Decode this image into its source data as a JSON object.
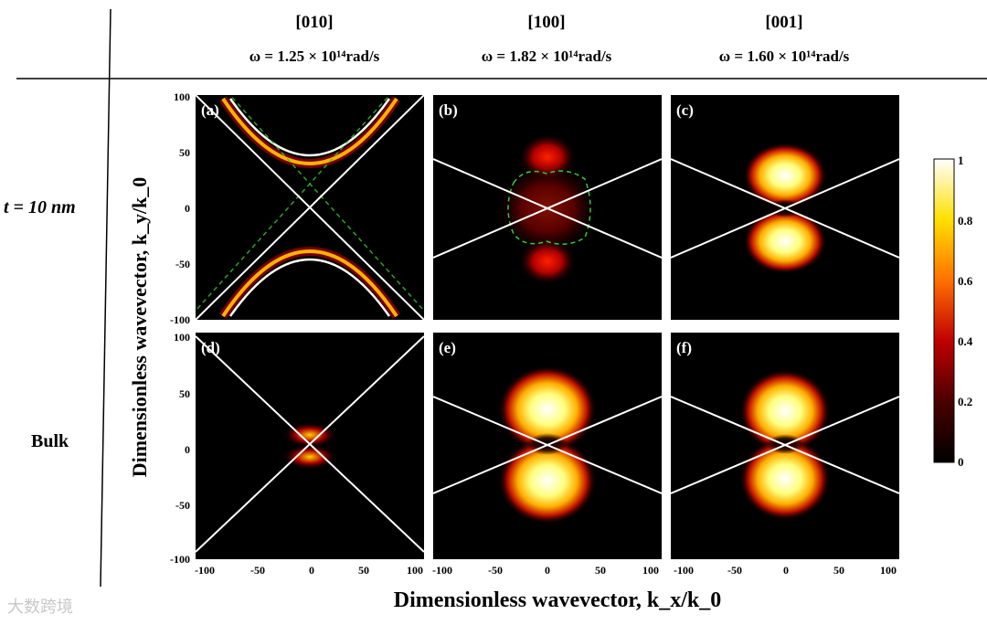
{
  "columns": [
    {
      "direction": "[010]",
      "frequency": "ω = 1.25 × 10¹⁴rad/s"
    },
    {
      "direction": "[100]",
      "frequency": "ω = 1.82 × 10¹⁴rad/s"
    },
    {
      "direction": "[001]",
      "frequency": "ω = 1.60 × 10¹⁴rad/s"
    }
  ],
  "rows": [
    {
      "label": "t = 10 nm"
    },
    {
      "label": "Bulk"
    }
  ],
  "watermark": "大数跨境",
  "chart_data": {
    "type": "heatmap",
    "panels": [
      {
        "label": "(a)",
        "row": "t = 10 nm",
        "column": "[010]",
        "pattern": "hyperbolic-branches",
        "vertex_ky": [
          -50,
          50
        ],
        "light_line_slope": 1.0
      },
      {
        "label": "(b)",
        "row": "t = 10 nm",
        "column": "[100]",
        "pattern": "elliptic-weak",
        "light_line_slope": 0.42,
        "contour": "green-dashed closed"
      },
      {
        "label": "(c)",
        "row": "t = 10 nm",
        "column": "[001]",
        "pattern": "two-lobes",
        "light_line_slope": 0.42
      },
      {
        "label": "(d)",
        "row": "Bulk",
        "column": "[010]",
        "pattern": "cone-near-origin",
        "light_line_slope": 1.0
      },
      {
        "label": "(e)",
        "row": "Bulk",
        "column": "[100]",
        "pattern": "two-lobes",
        "light_line_slope": 0.42
      },
      {
        "label": "(f)",
        "row": "Bulk",
        "column": "[001]",
        "pattern": "two-lobes",
        "light_line_slope": 0.42
      }
    ],
    "xlabel": "Dimensionless wavevector, k_x/k_0",
    "ylabel": "Dimensionless wavevector, k_y/k_0",
    "xlim": [
      -100,
      100
    ],
    "ylim": [
      -100,
      100
    ],
    "x_ticks": [
      "-100",
      "-50",
      "0",
      "50",
      "100"
    ],
    "y_ticks": [
      "100",
      "50",
      "0",
      "-50",
      "-100"
    ],
    "colorbar": {
      "min": 0,
      "max": 1,
      "ticks": [
        "1",
        "0.8",
        "0.6",
        "0.4",
        "0.2",
        "0"
      ],
      "colormap": "hot"
    }
  }
}
